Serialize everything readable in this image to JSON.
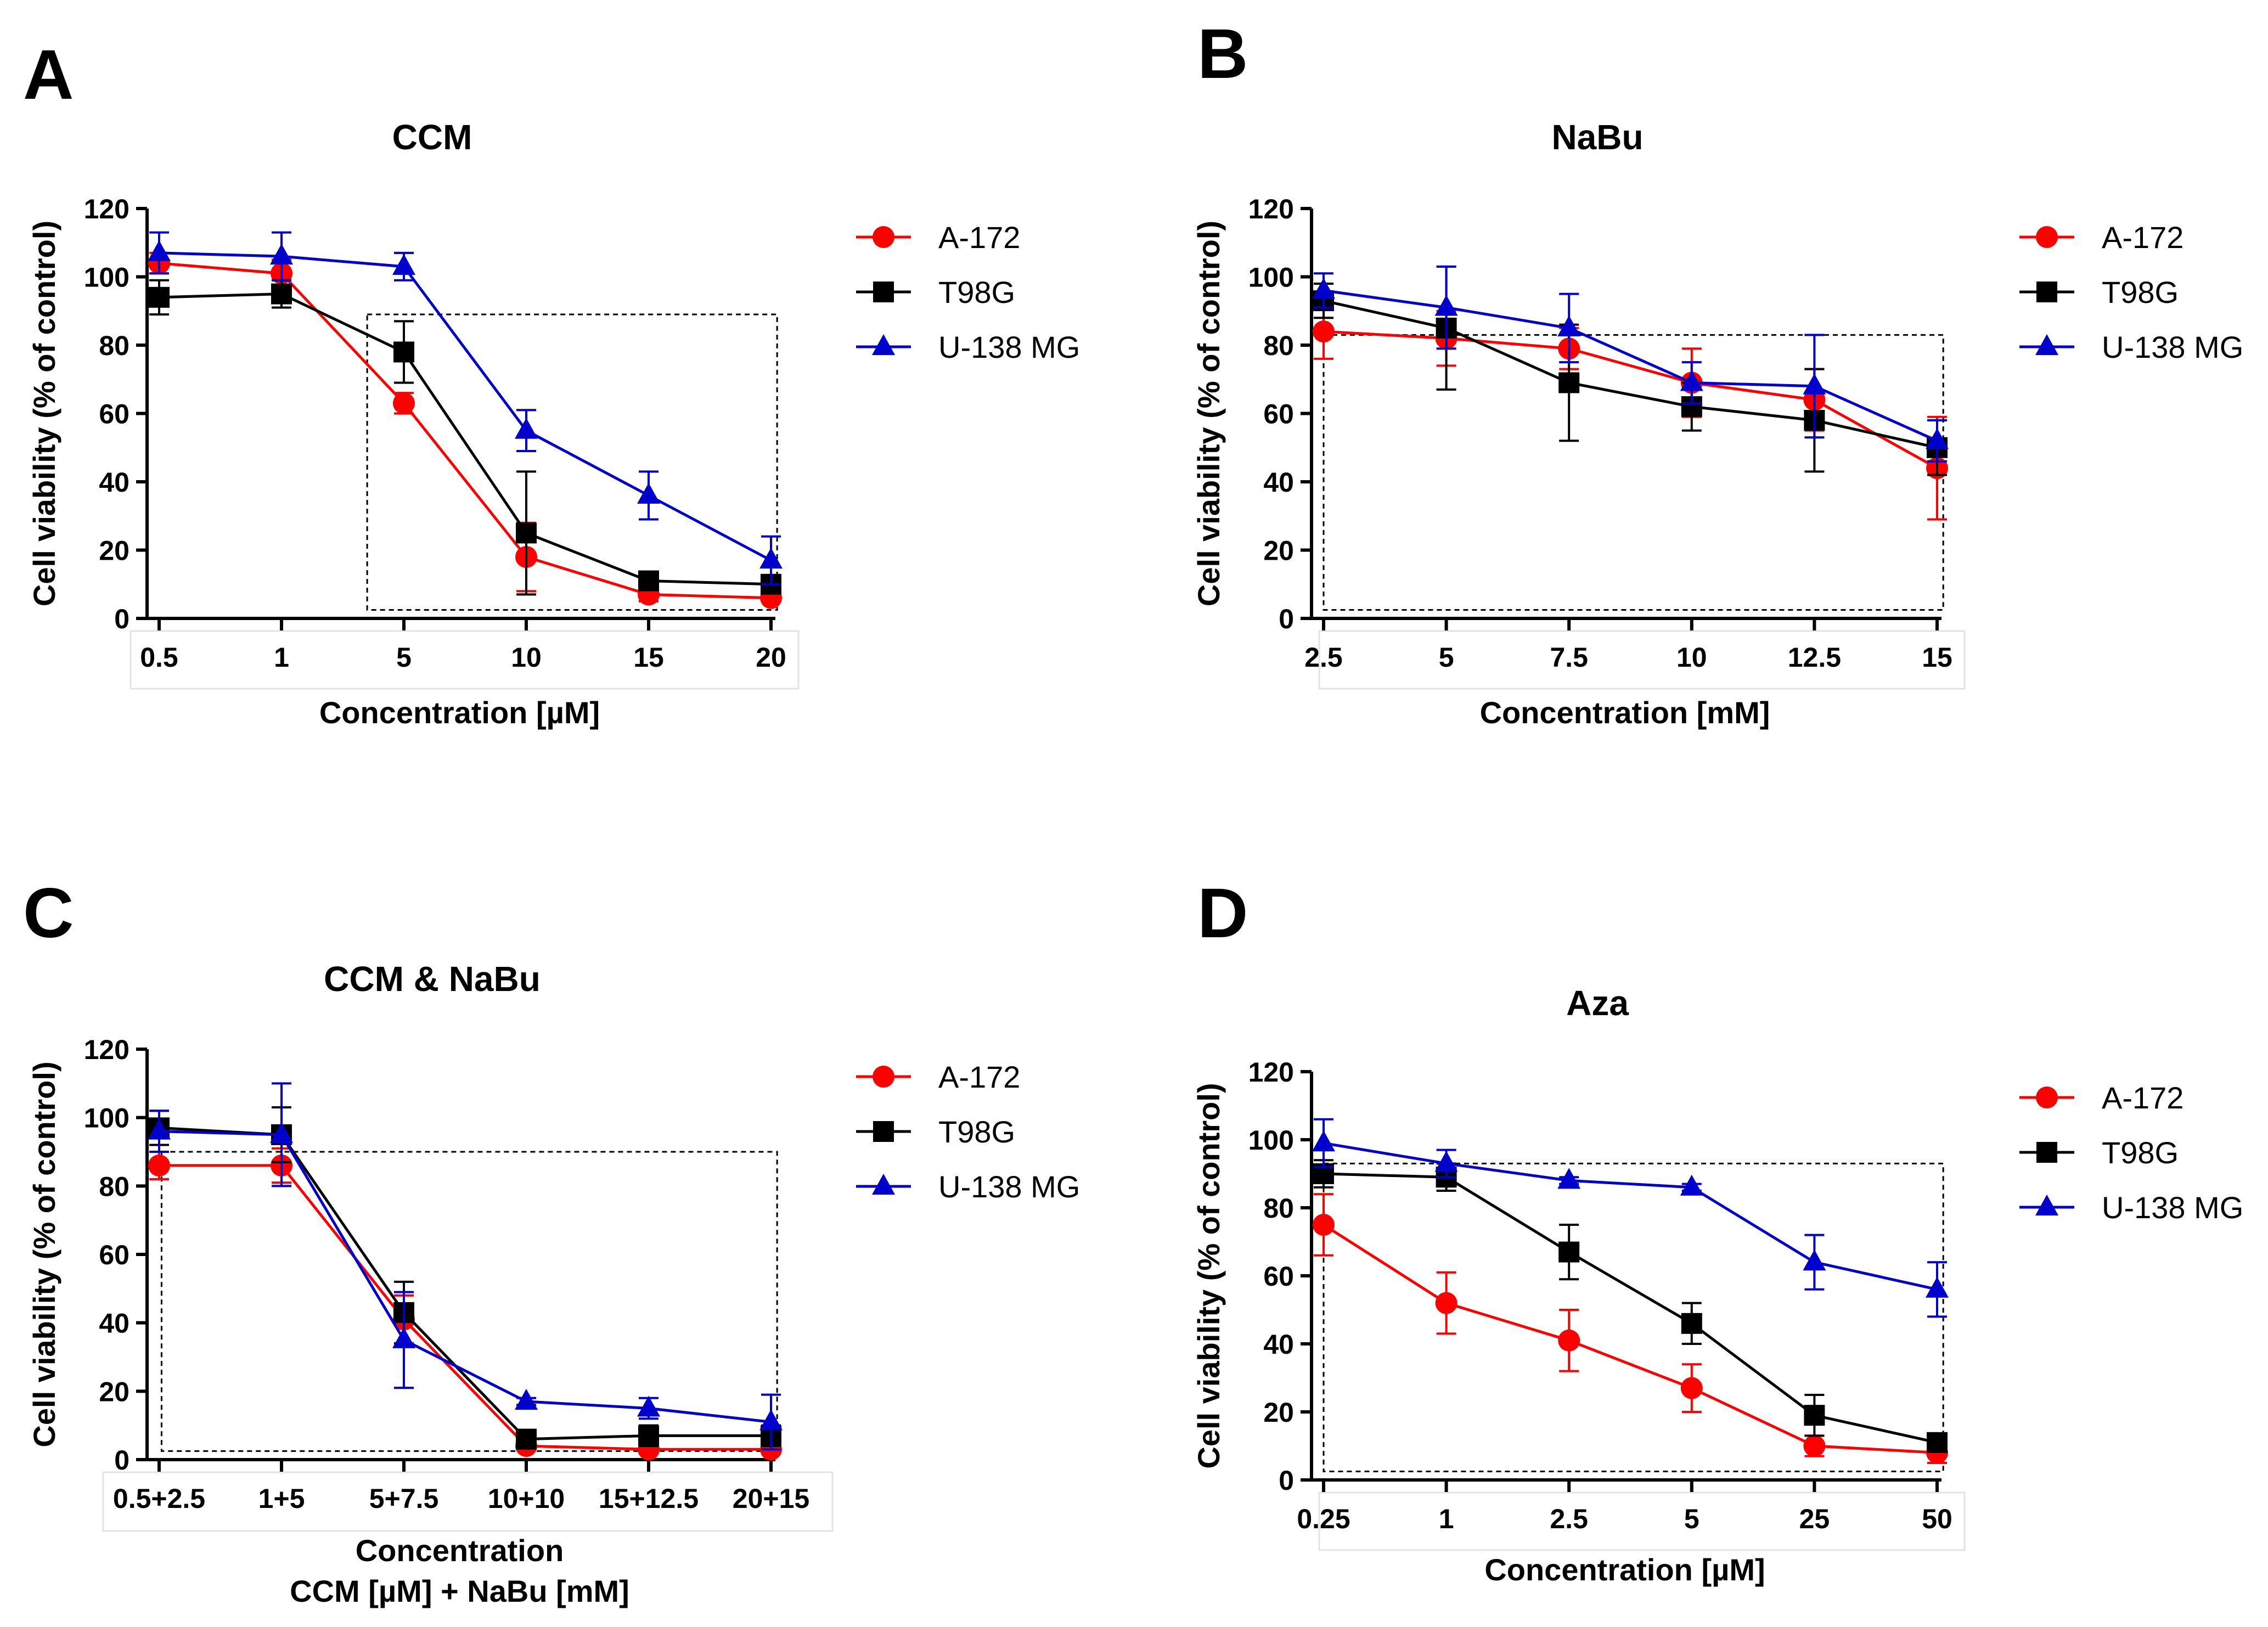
{
  "chart_data": [
    {
      "panel": "A",
      "type": "line",
      "title": "CCM",
      "xlabel": [
        "Concentration [µM]"
      ],
      "ylabel": "Cell viability (% of control)",
      "ylim": [
        0,
        120
      ],
      "yticks": [
        "0",
        "20",
        "40",
        "60",
        "80",
        "100",
        "120"
      ],
      "categories": [
        "0.5",
        "1",
        "5",
        "10",
        "15",
        "20"
      ],
      "dashed_box": {
        "x_start": 1.7,
        "x_end": 5.05,
        "y_bottom": 2.5,
        "y_top": 89
      },
      "series": [
        {
          "name": "A-172",
          "color": "#ff0000",
          "marker": "circle",
          "values": [
            104,
            101,
            63,
            18,
            7,
            6
          ],
          "errors": [
            3,
            4,
            3,
            10,
            2,
            1
          ]
        },
        {
          "name": "T98G",
          "color": "#000000",
          "marker": "square",
          "values": [
            94,
            95,
            78,
            25,
            11,
            10
          ],
          "errors": [
            5,
            4,
            9,
            18,
            2,
            2
          ]
        },
        {
          "name": "U-138 MG",
          "color": "#0000cc",
          "marker": "triangle",
          "values": [
            107,
            106,
            103,
            55,
            36,
            17
          ],
          "errors": [
            6,
            7,
            4,
            6,
            7,
            7
          ]
        }
      ]
    },
    {
      "panel": "B",
      "type": "line",
      "title": "NaBu",
      "xlabel": [
        "Concentration [mM]"
      ],
      "ylabel": "Cell viability (% of control)",
      "ylim": [
        0,
        120
      ],
      "yticks": [
        "0",
        "20",
        "40",
        "60",
        "80",
        "100",
        "120"
      ],
      "categories": [
        "2.5",
        "5",
        "7.5",
        "10",
        "12.5",
        "15"
      ],
      "dashed_box": {
        "x_start": 0,
        "x_end": 5.05,
        "y_bottom": 2.5,
        "y_top": 83
      },
      "series": [
        {
          "name": "A-172",
          "color": "#ff0000",
          "marker": "circle",
          "values": [
            84,
            82,
            79,
            69,
            64,
            44
          ],
          "errors": [
            8,
            8,
            6,
            10,
            9,
            15
          ]
        },
        {
          "name": "T98G",
          "color": "#000000",
          "marker": "square",
          "values": [
            93,
            85,
            69,
            62,
            58,
            50
          ],
          "errors": [
            5,
            18,
            17,
            7,
            15,
            8
          ]
        },
        {
          "name": "U-138 MG",
          "color": "#0000cc",
          "marker": "triangle",
          "values": [
            96,
            91,
            85,
            69,
            68,
            52
          ],
          "errors": [
            5,
            12,
            10,
            6,
            15,
            6
          ]
        }
      ]
    },
    {
      "panel": "C",
      "type": "line",
      "title": "CCM & NaBu",
      "xlabel": [
        "Concentration",
        "CCM [µM] + NaBu [mM]"
      ],
      "ylabel": "Cell viability (% of control)",
      "ylim": [
        0,
        120
      ],
      "yticks": [
        "0",
        "20",
        "40",
        "60",
        "80",
        "100",
        "120"
      ],
      "categories": [
        "0.5+2.5",
        "1+5",
        "5+7.5",
        "10+10",
        "15+12.5",
        "20+15"
      ],
      "dashed_box": {
        "x_start": 0.02,
        "x_end": 5.05,
        "y_bottom": 2.5,
        "y_top": 90
      },
      "series": [
        {
          "name": "A-172",
          "color": "#ff0000",
          "marker": "circle",
          "values": [
            86,
            86,
            41,
            4,
            3,
            3
          ],
          "errors": [
            4,
            5,
            7,
            1,
            1,
            1
          ]
        },
        {
          "name": "T98G",
          "color": "#000000",
          "marker": "square",
          "values": [
            97,
            95,
            43,
            6,
            7,
            7
          ],
          "errors": [
            5,
            8,
            9,
            2,
            3,
            3
          ]
        },
        {
          "name": "U-138 MG",
          "color": "#0000cc",
          "marker": "triangle",
          "values": [
            96,
            95,
            35,
            17,
            15,
            11
          ],
          "errors": [
            6,
            15,
            14,
            1,
            3,
            8
          ]
        }
      ]
    },
    {
      "panel": "D",
      "type": "line",
      "title": "Aza",
      "xlabel": [
        "Concentration [µM]"
      ],
      "ylabel": "Cell viability (% of control)",
      "ylim": [
        0,
        120
      ],
      "yticks": [
        "0",
        "20",
        "40",
        "60",
        "80",
        "100",
        "120"
      ],
      "categories": [
        "0.25",
        "1",
        "2.5",
        "5",
        "25",
        "50"
      ],
      "dashed_box": {
        "x_start": 0,
        "x_end": 5.05,
        "y_bottom": 2.5,
        "y_top": 93
      },
      "series": [
        {
          "name": "A-172",
          "color": "#ff0000",
          "marker": "circle",
          "values": [
            75,
            52,
            41,
            27,
            10,
            8
          ],
          "errors": [
            9,
            9,
            9,
            7,
            3,
            3
          ]
        },
        {
          "name": "T98G",
          "color": "#000000",
          "marker": "square",
          "values": [
            90,
            89,
            67,
            46,
            19,
            11
          ],
          "errors": [
            4,
            4,
            8,
            6,
            6,
            1
          ]
        },
        {
          "name": "U-138 MG",
          "color": "#0000cc",
          "marker": "triangle",
          "values": [
            99,
            93,
            88,
            86,
            64,
            56
          ],
          "errors": [
            7,
            4,
            1,
            1,
            8,
            8
          ]
        }
      ]
    }
  ]
}
